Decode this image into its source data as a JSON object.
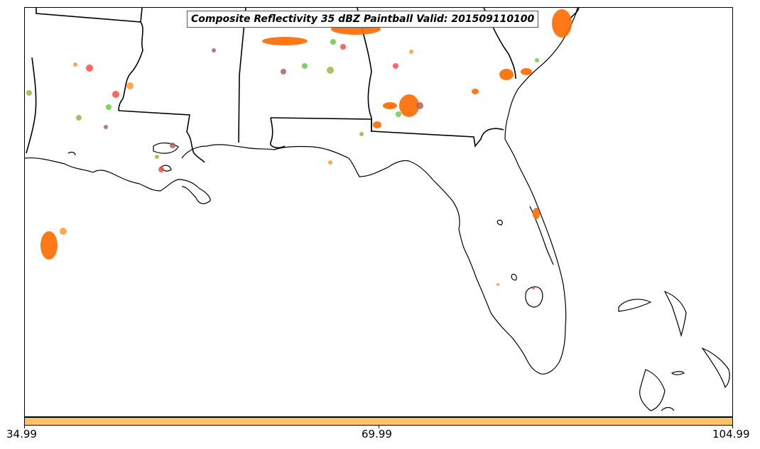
{
  "title": "Composite Reflectivity 35 dBZ Paintball Valid: 201509110100",
  "colorbar": {
    "color": "#ffc266",
    "ticks": [
      "34.99",
      "69.99",
      "104.99"
    ]
  },
  "map": {
    "region": "US Gulf Coast and Southeast",
    "coast_color": "#000000",
    "paint_colors": [
      "#ff6a00",
      "#ff4040",
      "#66cc44",
      "#a8b040",
      "#b06060",
      "#ff9933"
    ]
  }
}
